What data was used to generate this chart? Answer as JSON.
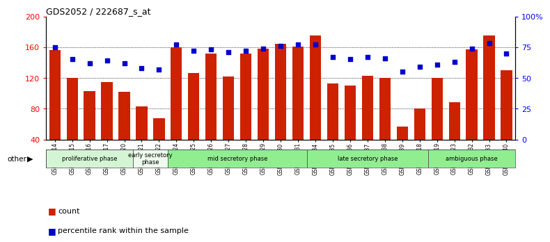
{
  "title": "GDS2052 / 222687_s_at",
  "samples": [
    "GSM109814",
    "GSM109815",
    "GSM109816",
    "GSM109817",
    "GSM109820",
    "GSM109821",
    "GSM109822",
    "GSM109824",
    "GSM109825",
    "GSM109826",
    "GSM109827",
    "GSM109828",
    "GSM109829",
    "GSM109830",
    "GSM109831",
    "GSM109834",
    "GSM109835",
    "GSM109836",
    "GSM109837",
    "GSM109838",
    "GSM109839",
    "GSM109818",
    "GSM109819",
    "GSM109823",
    "GSM109832",
    "GSM109833",
    "GSM109840"
  ],
  "counts": [
    156,
    120,
    103,
    115,
    102,
    83,
    68,
    160,
    126,
    152,
    122,
    152,
    158,
    164,
    161,
    175,
    113,
    110,
    123,
    120,
    57,
    80,
    120,
    88,
    157,
    175,
    130
  ],
  "percentiles": [
    75,
    65,
    62,
    64,
    62,
    58,
    57,
    77,
    72,
    73,
    71,
    72,
    74,
    76,
    77,
    77,
    67,
    65,
    67,
    66,
    55,
    59,
    61,
    63,
    74,
    78,
    70
  ],
  "phases": [
    {
      "label": "proliferative phase",
      "start": 0,
      "end": 5,
      "color": "#d4f5d4"
    },
    {
      "label": "early secretory\nphase",
      "start": 5,
      "end": 7,
      "color": "#edfaed"
    },
    {
      "label": "mid secretory phase",
      "start": 7,
      "end": 15,
      "color": "#90ee90"
    },
    {
      "label": "late secretory phase",
      "start": 15,
      "end": 22,
      "color": "#90ee90"
    },
    {
      "label": "ambiguous phase",
      "start": 22,
      "end": 27,
      "color": "#90ee90"
    }
  ],
  "ylim_left": [
    40,
    200
  ],
  "ylim_right": [
    0,
    100
  ],
  "bar_color": "#cc2200",
  "dot_color": "#0000cc",
  "yticks_left": [
    40,
    80,
    120,
    160,
    200
  ],
  "yticks_right": [
    0,
    25,
    50,
    75,
    100
  ],
  "ytick_labels_right": [
    "0",
    "25",
    "50",
    "75",
    "100%"
  ]
}
